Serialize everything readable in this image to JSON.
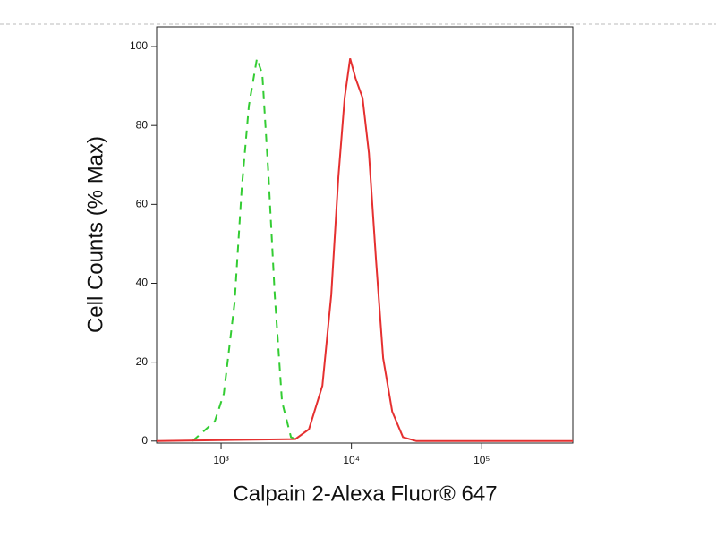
{
  "chart_data": {
    "type": "line",
    "x_scale": "log",
    "xlabel": "Calpain 2-Alexa Fluor® 647",
    "ylabel": "Cell Counts (% Max)",
    "xlim": [
      320,
      500000
    ],
    "ylim": [
      -0.5,
      105
    ],
    "xticks": [
      {
        "value": 1000,
        "label": "10³"
      },
      {
        "value": 10000,
        "label": "10⁴"
      },
      {
        "value": 100000,
        "label": "10⁵"
      }
    ],
    "yticks": [
      0,
      20,
      40,
      60,
      80,
      100
    ],
    "series": [
      {
        "color": "#33cc33",
        "dashed": true,
        "x": [
          603,
          895,
          1049,
          1268,
          1439,
          1633,
          1884,
          2071,
          2313,
          2583,
          2932,
          3434,
          4025
        ],
        "values": [
          0,
          5,
          12,
          35,
          64,
          85,
          97,
          93,
          67,
          37,
          10,
          1,
          0
        ]
      },
      {
        "color": "#e53030",
        "dashed": false,
        "x": [
          320,
          3717,
          4720,
          5985,
          7004,
          7945,
          8876,
          9767,
          10740,
          12180,
          13620,
          15450,
          17530,
          20540,
          24850,
          31480,
          500000
        ],
        "values": [
          0,
          0.5,
          3,
          14,
          37,
          67,
          87,
          97,
          92,
          87,
          73,
          46,
          21,
          7.5,
          1,
          0,
          0
        ]
      }
    ]
  }
}
